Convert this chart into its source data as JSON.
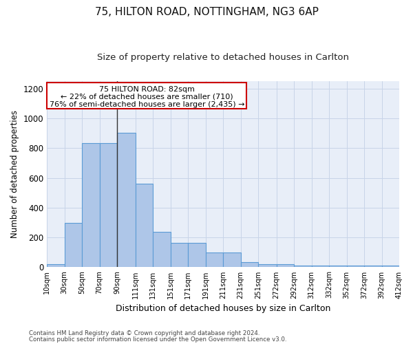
{
  "title1": "75, HILTON ROAD, NOTTINGHAM, NG3 6AP",
  "title2": "Size of property relative to detached houses in Carlton",
  "xlabel": "Distribution of detached houses by size in Carlton",
  "ylabel": "Number of detached properties",
  "footer1": "Contains HM Land Registry data © Crown copyright and database right 2024.",
  "footer2": "Contains public sector information licensed under the Open Government Licence v3.0.",
  "annotation_title": "75 HILTON ROAD: 82sqm",
  "annotation_line2": "← 22% of detached houses are smaller (710)",
  "annotation_line3": "76% of semi-detached houses are larger (2,435) →",
  "bar_left_edges": [
    10,
    30,
    50,
    70,
    90,
    111,
    131,
    151,
    171,
    191,
    211,
    231,
    251,
    272,
    292,
    312,
    332,
    352,
    372,
    392
  ],
  "bar_widths": [
    20,
    20,
    20,
    20,
    21,
    20,
    20,
    20,
    20,
    20,
    20,
    20,
    21,
    20,
    20,
    20,
    20,
    20,
    20,
    20
  ],
  "bar_heights": [
    20,
    300,
    835,
    835,
    905,
    560,
    240,
    165,
    165,
    100,
    100,
    33,
    22,
    22,
    10,
    10,
    10,
    10,
    10,
    10
  ],
  "bar_color": "#aec6e8",
  "bar_edge_color": "#5b9bd5",
  "vline_x": 90,
  "vline_color": "#333333",
  "ylim": [
    0,
    1250
  ],
  "yticks": [
    0,
    200,
    400,
    600,
    800,
    1000,
    1200
  ],
  "xtick_labels": [
    "10sqm",
    "30sqm",
    "50sqm",
    "70sqm",
    "90sqm",
    "111sqm",
    "131sqm",
    "151sqm",
    "171sqm",
    "191sqm",
    "211sqm",
    "231sqm",
    "251sqm",
    "272sqm",
    "292sqm",
    "312sqm",
    "332sqm",
    "352sqm",
    "372sqm",
    "392sqm",
    "412sqm"
  ],
  "grid_color": "#c8d4e8",
  "bg_color": "#e8eef8",
  "annotation_box_color": "#cc0000",
  "title_fontsize": 11,
  "subtitle_fontsize": 9.5
}
